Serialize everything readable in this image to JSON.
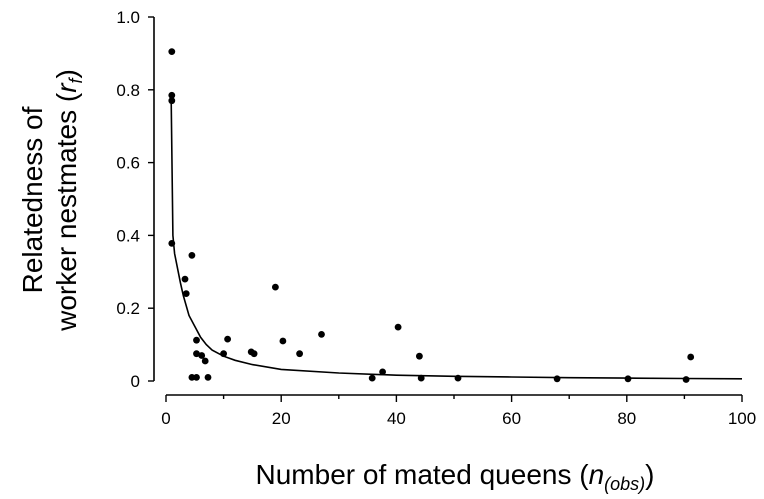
{
  "chart_data": {
    "type": "scatter",
    "xlabel": {
      "text": "Number of mated queens (",
      "sym": "n",
      "sub": "(obs)",
      "close": ")"
    },
    "ylabel": {
      "line1": "Relatedness of",
      "line2": "worker nestmates (",
      "sym": "r",
      "sub": "f",
      "close": ")"
    },
    "xlim": [
      0,
      100
    ],
    "ylim": [
      0,
      1.0
    ],
    "xticks": [
      0,
      20,
      40,
      60,
      80,
      100
    ],
    "yticks": [
      0,
      0.2,
      0.4,
      0.6,
      0.8,
      1.0
    ],
    "xtick_labels": [
      "0",
      "20",
      "40",
      "60",
      "80",
      "100"
    ],
    "ytick_labels": [
      "0",
      "0.2",
      "0.4",
      "0.6",
      "0.8",
      "1.0"
    ],
    "grid": false,
    "series": [
      {
        "kind": "points",
        "x": [
          1.0,
          1.0,
          1.0,
          1.0,
          3.3,
          3.5,
          4.5,
          4.5,
          5.3,
          5.3,
          5.3,
          6.2,
          6.8,
          7.3,
          10.0,
          10.7,
          14.8,
          15.3,
          19.0,
          20.3,
          23.2,
          27.0,
          35.8,
          37.6,
          40.3,
          44.0,
          44.3,
          50.7,
          67.9,
          80.2,
          90.3,
          91.1
        ],
        "y": [
          0.905,
          0.785,
          0.77,
          0.378,
          0.28,
          0.24,
          0.345,
          0.01,
          0.112,
          0.075,
          0.01,
          0.07,
          0.055,
          0.01,
          0.075,
          0.115,
          0.08,
          0.075,
          0.258,
          0.11,
          0.075,
          0.128,
          0.008,
          0.025,
          0.148,
          0.068,
          0.008,
          0.008,
          0.006,
          0.006,
          0.004,
          0.066
        ]
      },
      {
        "kind": "curve",
        "x": [
          0.9,
          1.2,
          1.5,
          2,
          2.5,
          3,
          4,
          5,
          6,
          7,
          8,
          10,
          12,
          15,
          20,
          30,
          40,
          50,
          60,
          70,
          80,
          90,
          100
        ],
        "y": [
          0.77,
          0.4,
          0.35,
          0.31,
          0.27,
          0.235,
          0.18,
          0.15,
          0.12,
          0.1,
          0.085,
          0.068,
          0.057,
          0.045,
          0.032,
          0.022,
          0.016,
          0.013,
          0.011,
          0.009,
          0.008,
          0.007,
          0.006
        ]
      }
    ]
  }
}
